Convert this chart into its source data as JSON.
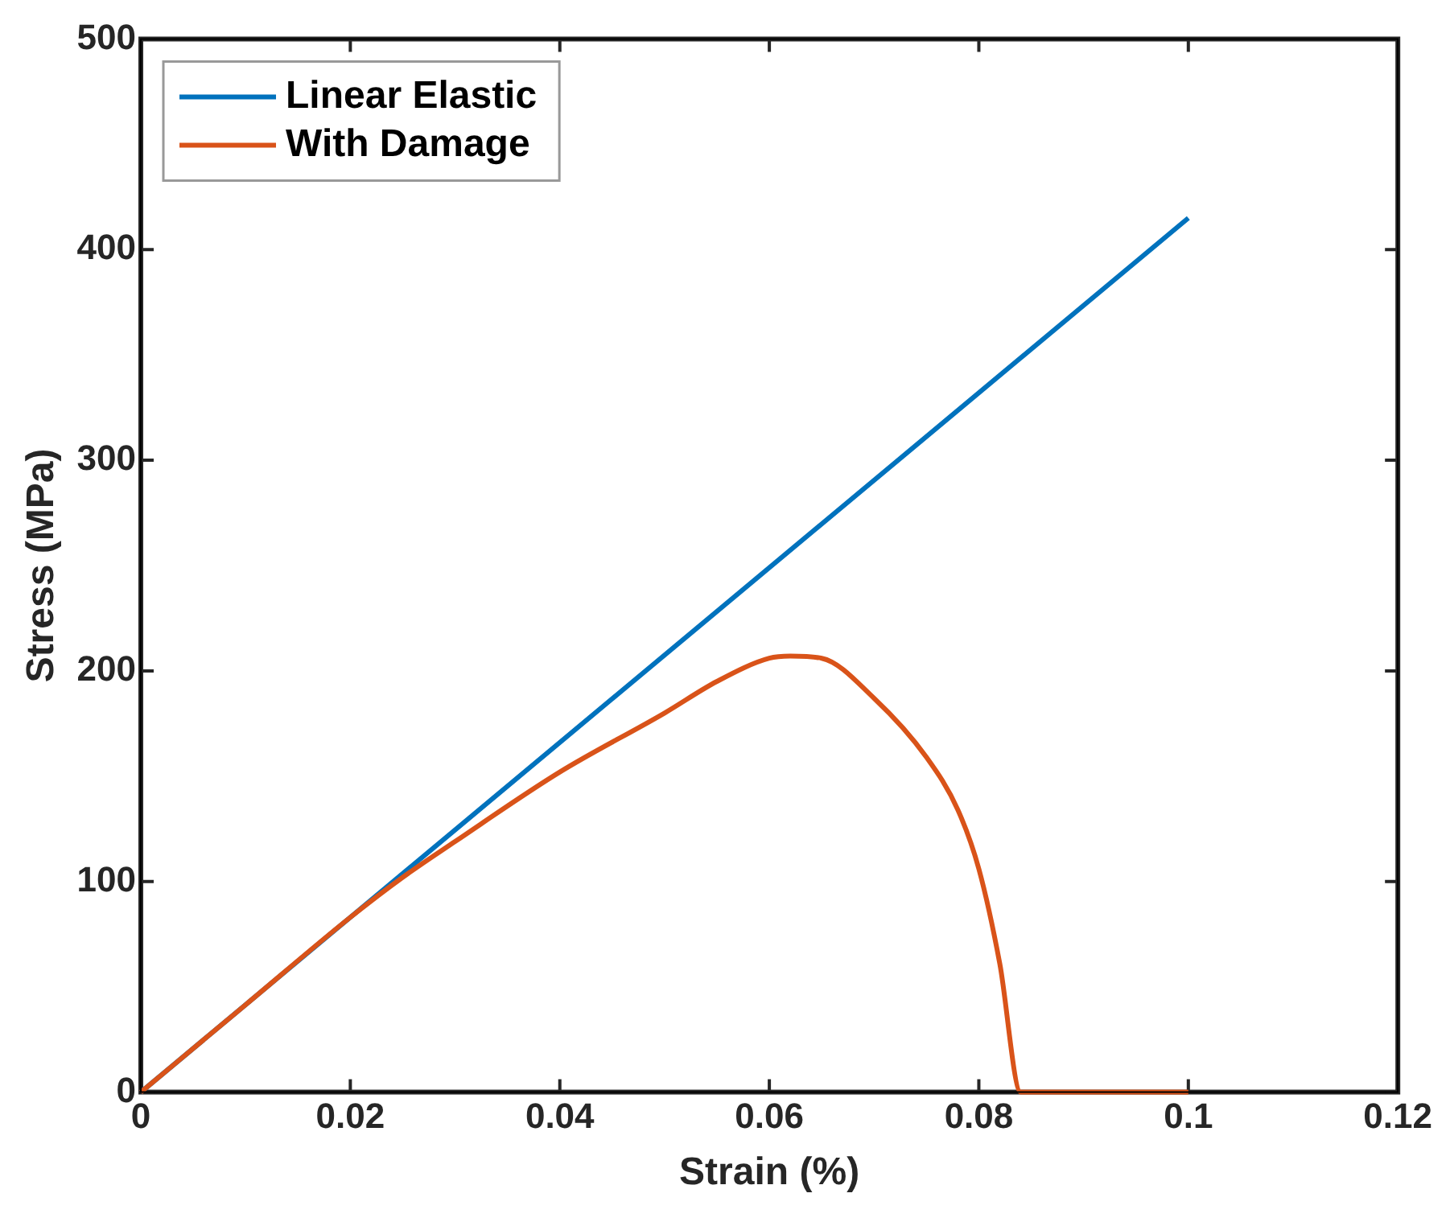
{
  "chart_data": {
    "type": "line",
    "xlabel": "Strain (%)",
    "ylabel": "Stress (MPa)",
    "xlim": [
      0,
      0.12
    ],
    "xticks": [
      0,
      0.02,
      0.04,
      0.06,
      0.08,
      0.1,
      0.12
    ],
    "ylim": [
      0,
      500
    ],
    "yticks": [
      0,
      100,
      200,
      300,
      400,
      500
    ],
    "grid": false,
    "legend": "top left",
    "marker": "none",
    "line_style": "solid",
    "series": [
      {
        "name": "Linear Elastic",
        "color": "#0072bd",
        "x": [
          0,
          0.1
        ],
        "values": [
          0,
          415
        ]
      },
      {
        "name": "With Damage",
        "color": "#d95319",
        "x": [
          0,
          0.01,
          0.02,
          0.025,
          0.03,
          0.04,
          0.05,
          0.055,
          0.06,
          0.062,
          0.065,
          0.07,
          0.075,
          0.078,
          0.08,
          0.082,
          0.084,
          0.1
        ],
        "values": [
          0,
          41.5,
          83,
          102,
          119,
          152,
          180,
          195,
          206,
          207,
          206,
          187,
          159,
          134,
          106,
          61,
          0,
          0
        ]
      }
    ]
  }
}
